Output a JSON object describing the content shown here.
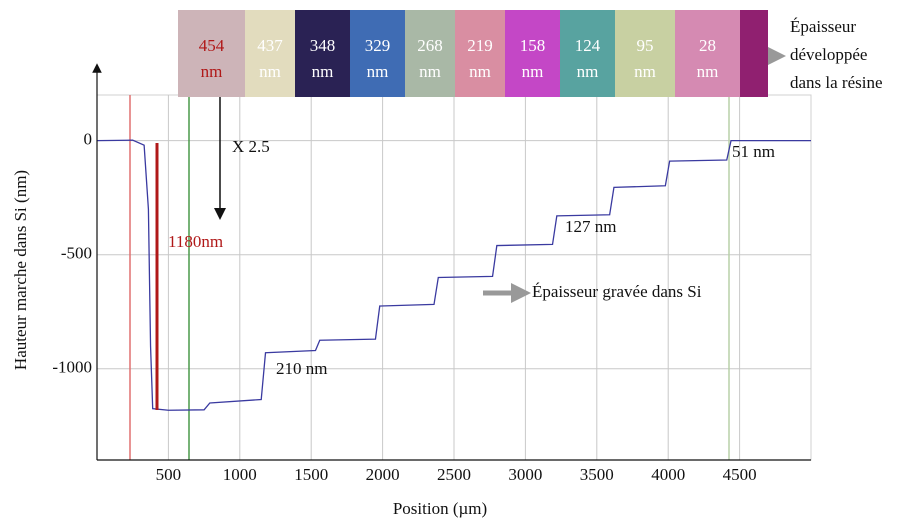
{
  "chart_data": {
    "type": "line",
    "xlabel": "Position (µm)",
    "ylabel": "Hauteur marche dans Si (nm)",
    "x": [
      0,
      250,
      330,
      360,
      375,
      390,
      500,
      750,
      790,
      1150,
      1180,
      1530,
      1560,
      1950,
      1980,
      2360,
      2390,
      2770,
      2800,
      3190,
      3220,
      3590,
      3620,
      3980,
      4010,
      4410,
      4440,
      5000
    ],
    "series": [
      {
        "color": "#3a3aa0",
        "values": [
          0,
          2,
          -20,
          -300,
          -900,
          -1175,
          -1182,
          -1180,
          -1150,
          -1135,
          -930,
          -920,
          -875,
          -870,
          -725,
          -718,
          -600,
          -595,
          -460,
          -455,
          -330,
          -325,
          -205,
          -198,
          -90,
          -85,
          0,
          0
        ]
      }
    ],
    "xlim": [
      0,
      5000
    ],
    "ylim": [
      -1400,
      200
    ],
    "xticks": [
      500,
      1000,
      1500,
      2000,
      2500,
      3000,
      3500,
      4000,
      4500
    ],
    "yticks": [
      0,
      -500,
      -1000
    ],
    "grid": true,
    "annotations": [
      "X 2.5",
      "1180nm",
      "210 nm",
      "127 nm",
      "51 nm",
      "Épaisseur gravée dans Si"
    ],
    "legend_lines": [
      "Épaisseur",
      "développée",
      "dans la résine"
    ],
    "swatches": [
      {
        "color": "#cdb4b8",
        "number": "454",
        "unit": "nm",
        "text_color": "#b01818"
      },
      {
        "color": "#e2dcbe",
        "number": "437",
        "unit": "nm",
        "text_color": "#ffffff"
      },
      {
        "color": "#2a2254",
        "number": "348",
        "unit": "nm",
        "text_color": "#ffffff"
      },
      {
        "color": "#3f6cb4",
        "number": "329",
        "unit": "nm",
        "text_color": "#ffffff"
      },
      {
        "color": "#a9b8a6",
        "number": "268",
        "unit": "nm",
        "text_color": "#ffffff"
      },
      {
        "color": "#d98ea2",
        "number": "219",
        "unit": "nm",
        "text_color": "#ffffff"
      },
      {
        "color": "#c447c6",
        "number": "158",
        "unit": "nm",
        "text_color": "#ffffff"
      },
      {
        "color": "#58a3a0",
        "number": "124",
        "unit": "nm",
        "text_color": "#ffffff"
      },
      {
        "color": "#c8d0a2",
        "number": "95",
        "unit": "nm",
        "text_color": "#ffffff"
      },
      {
        "color": "#d58ab2",
        "number": "28",
        "unit": "nm",
        "text_color": "#ffffff"
      }
    ]
  }
}
